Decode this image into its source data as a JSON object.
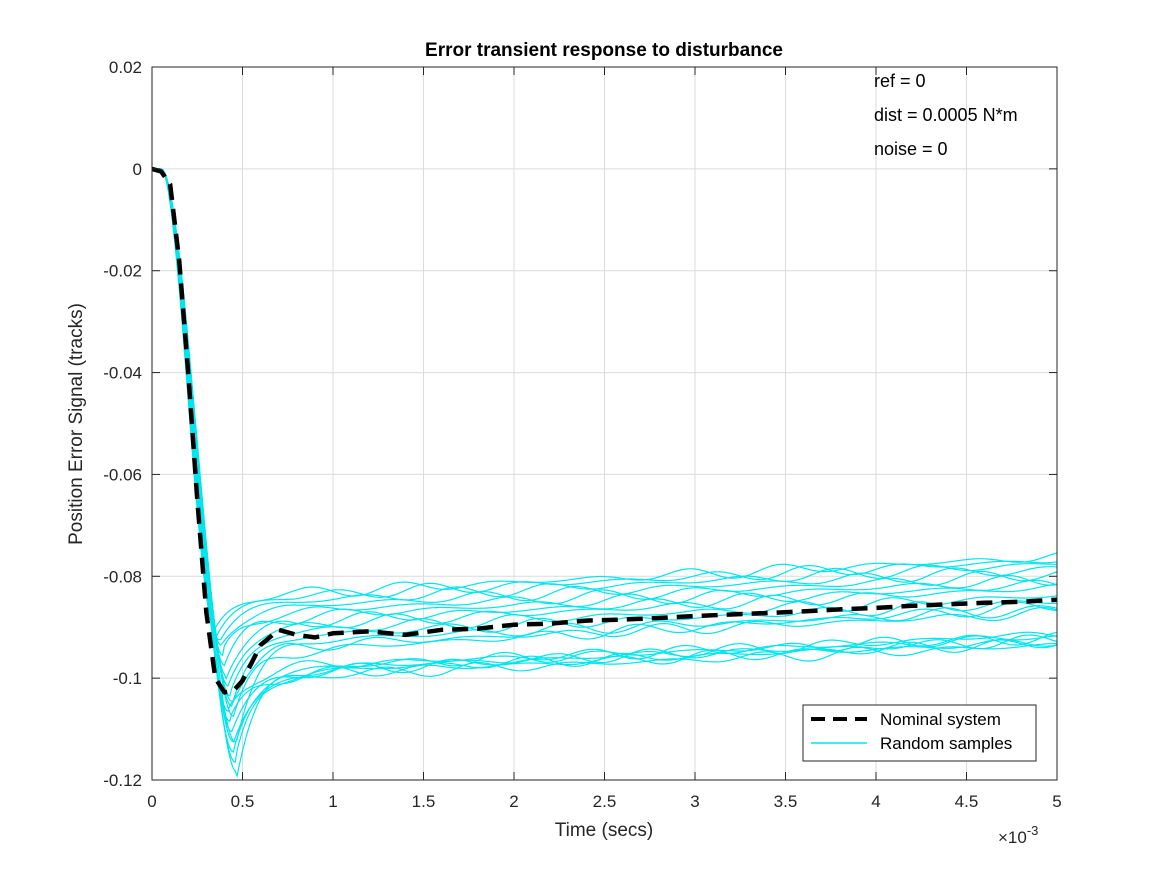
{
  "chart_data": {
    "type": "line",
    "title": "Error transient response to disturbance",
    "xlabel": "Time (secs)",
    "ylabel": "Position Error Signal (tracks)",
    "x_exponent_label": "×10",
    "x_exponent_power": "-3",
    "xlim": [
      0,
      5
    ],
    "ylim": [
      -0.12,
      0.02
    ],
    "x_ticks": [
      0,
      0.5,
      1,
      1.5,
      2,
      2.5,
      3,
      3.5,
      4,
      4.5,
      5
    ],
    "x_tick_labels": [
      "0",
      "0.5",
      "1",
      "1.5",
      "2",
      "2.5",
      "3",
      "3.5",
      "4",
      "4.5",
      "5"
    ],
    "y_ticks": [
      0.02,
      0,
      -0.02,
      -0.04,
      -0.06,
      -0.08,
      -0.1,
      -0.12
    ],
    "y_tick_labels": [
      "0.02",
      "0",
      "-0.02",
      "-0.04",
      "-0.06",
      "-0.08",
      "-0.1",
      "-0.12"
    ],
    "grid": true,
    "legend_position": "bottom-right",
    "annotations": [
      "ref = 0",
      "dist = 0.0005 N*m",
      "noise = 0"
    ],
    "series": [
      {
        "name": "Nominal system",
        "style": "dashed",
        "color": "#000000",
        "x": [
          0,
          0.05,
          0.1,
          0.15,
          0.2,
          0.25,
          0.3,
          0.35,
          0.4,
          0.45,
          0.5,
          0.55,
          0.6,
          0.7,
          0.8,
          0.9,
          1.0,
          1.2,
          1.4,
          1.6,
          1.8,
          2.0,
          2.2,
          2.4,
          2.6,
          2.8,
          3.0,
          3.2,
          3.4,
          3.6,
          3.8,
          4.0,
          4.2,
          4.4,
          4.6,
          4.8,
          5.0
        ],
        "y": [
          0,
          -0.0005,
          -0.003,
          -0.018,
          -0.04,
          -0.065,
          -0.087,
          -0.1,
          -0.1028,
          -0.1025,
          -0.1005,
          -0.097,
          -0.0935,
          -0.0905,
          -0.0915,
          -0.092,
          -0.0912,
          -0.0908,
          -0.0915,
          -0.0905,
          -0.0903,
          -0.0895,
          -0.0893,
          -0.0887,
          -0.0885,
          -0.0882,
          -0.0878,
          -0.0875,
          -0.0872,
          -0.0869,
          -0.0865,
          -0.0862,
          -0.0858,
          -0.0855,
          -0.0852,
          -0.085,
          -0.0846
        ]
      },
      {
        "name": "Random samples",
        "style": "solid",
        "color": "#00e5ee",
        "samples": [
          {
            "peak": -0.1185,
            "peak_t": 0.47,
            "settle": -0.098,
            "end": -0.0925
          },
          {
            "peak": -0.1165,
            "peak_t": 0.46,
            "settle": -0.0985,
            "end": -0.093
          },
          {
            "peak": -0.1145,
            "peak_t": 0.45,
            "settle": -0.0978,
            "end": -0.0918
          },
          {
            "peak": -0.1125,
            "peak_t": 0.45,
            "settle": -0.0995,
            "end": -0.0935
          },
          {
            "peak": -0.1105,
            "peak_t": 0.44,
            "settle": -0.0988,
            "end": -0.0912
          },
          {
            "peak": -0.1085,
            "peak_t": 0.43,
            "settle": -0.0992,
            "end": -0.0928
          },
          {
            "peak": -0.1065,
            "peak_t": 0.42,
            "settle": -0.0975,
            "end": -0.092
          },
          {
            "peak": -0.1125,
            "peak_t": 0.46,
            "settle": -0.0925,
            "end": -0.0865
          },
          {
            "peak": -0.1055,
            "peak_t": 0.44,
            "settle": -0.0915,
            "end": -0.085
          },
          {
            "peak": -0.1035,
            "peak_t": 0.43,
            "settle": -0.0905,
            "end": -0.0838
          },
          {
            "peak": -0.1015,
            "peak_t": 0.42,
            "settle": -0.0895,
            "end": -0.0822
          },
          {
            "peak": -0.0995,
            "peak_t": 0.41,
            "settle": -0.0888,
            "end": -0.0815
          },
          {
            "peak": -0.0975,
            "peak_t": 0.4,
            "settle": -0.0878,
            "end": -0.0805
          },
          {
            "peak": -0.0955,
            "peak_t": 0.39,
            "settle": -0.0868,
            "end": -0.0795
          },
          {
            "peak": -0.0935,
            "peak_t": 0.38,
            "settle": -0.0858,
            "end": -0.0785
          },
          {
            "peak": -0.0925,
            "peak_t": 0.37,
            "settle": -0.0848,
            "end": -0.0775
          },
          {
            "peak": -0.0915,
            "peak_t": 0.36,
            "settle": -0.0838,
            "end": -0.0768
          },
          {
            "peak": -0.0905,
            "peak_t": 0.35,
            "settle": -0.0832,
            "end": -0.0762
          },
          {
            "peak": -0.1045,
            "peak_t": 0.44,
            "settle": -0.0935,
            "end": -0.0872
          },
          {
            "peak": -0.1075,
            "peak_t": 0.45,
            "settle": -0.0945,
            "end": -0.0858
          }
        ]
      }
    ]
  }
}
